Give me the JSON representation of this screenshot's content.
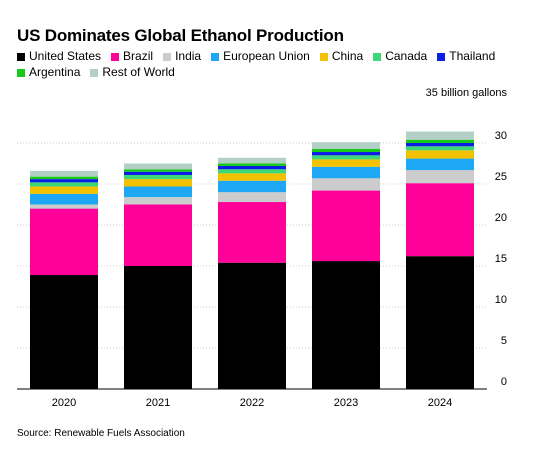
{
  "chart_data": {
    "type": "bar",
    "stacked": true,
    "title": "US Dominates Global Ethanol Production",
    "unit_label": "35 billion gallons",
    "categories": [
      "2020",
      "2021",
      "2022",
      "2023",
      "2024"
    ],
    "ylim": [
      0,
      35
    ],
    "yticks": [
      0,
      5,
      10,
      15,
      20,
      25,
      30
    ],
    "legend_position": "top",
    "series": [
      {
        "name": "United States",
        "color": "#000000",
        "values": [
          13.9,
          15.0,
          15.4,
          15.6,
          16.2
        ]
      },
      {
        "name": "Brazil",
        "color": "#ff0099",
        "values": [
          8.1,
          7.5,
          7.4,
          8.6,
          8.9
        ]
      },
      {
        "name": "India",
        "color": "#cccccc",
        "values": [
          0.5,
          0.9,
          1.2,
          1.5,
          1.6
        ]
      },
      {
        "name": "European Union",
        "color": "#1ea7f5",
        "values": [
          1.3,
          1.3,
          1.4,
          1.4,
          1.4
        ]
      },
      {
        "name": "China",
        "color": "#f2c100",
        "values": [
          0.9,
          0.9,
          0.9,
          0.9,
          1.0
        ]
      },
      {
        "name": "Canada",
        "color": "#3cd878",
        "values": [
          0.5,
          0.5,
          0.5,
          0.5,
          0.5
        ]
      },
      {
        "name": "Thailand",
        "color": "#0a1ee6",
        "values": [
          0.4,
          0.4,
          0.4,
          0.4,
          0.4
        ]
      },
      {
        "name": "Argentina",
        "color": "#19c919",
        "values": [
          0.3,
          0.3,
          0.3,
          0.4,
          0.4
        ]
      },
      {
        "name": "Rest of World",
        "color": "#b2d0c8",
        "values": [
          0.7,
          0.7,
          0.7,
          0.8,
          1.0
        ]
      }
    ]
  },
  "source": "Source: Renewable Fuels Association"
}
